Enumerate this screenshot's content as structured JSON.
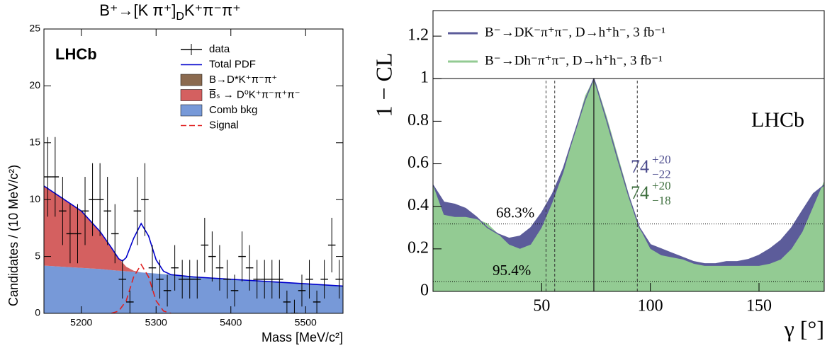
{
  "chart_data": [
    {
      "type": "errorbar",
      "title": {
        "main": "B⁺→[K π⁺]",
        "sub": "D",
        "tail": "K⁺π⁻π⁺"
      },
      "xlabel": "Mass [MeV/c²]",
      "ylabel": "Candidates / (10 MeV/c²)",
      "annotation": "LHCb",
      "xlim": [
        5150,
        5550
      ],
      "xticks": [
        5200,
        5300,
        5400,
        5500
      ],
      "ylim": [
        0,
        25
      ],
      "yticks": [
        0,
        5,
        10,
        15,
        20,
        25
      ],
      "data": {
        "name": "data",
        "color": "#000000",
        "x": [
          5155,
          5165,
          5175,
          5185,
          5195,
          5205,
          5215,
          5225,
          5235,
          5245,
          5255,
          5265,
          5275,
          5285,
          5295,
          5305,
          5315,
          5325,
          5335,
          5345,
          5355,
          5365,
          5375,
          5385,
          5395,
          5405,
          5415,
          5425,
          5435,
          5445,
          5455,
          5465,
          5475,
          5485,
          5495,
          5505,
          5515,
          5525,
          5535,
          5545
        ],
        "values": [
          12,
          12,
          9,
          7,
          7,
          9,
          10,
          10,
          9,
          7,
          3,
          1,
          9,
          10,
          4,
          3,
          2,
          4,
          3,
          3,
          3,
          6,
          5,
          4,
          3,
          2,
          5,
          4,
          3,
          3,
          3,
          3,
          1,
          0,
          2,
          3,
          1,
          3,
          6,
          3
        ],
        "errors": [
          3.5,
          3.5,
          3.0,
          2.6,
          2.6,
          3.0,
          3.2,
          3.2,
          3.0,
          2.6,
          1.7,
          1.0,
          3.0,
          3.2,
          2.0,
          1.7,
          1.4,
          2.0,
          1.7,
          1.7,
          1.7,
          2.4,
          2.2,
          2.0,
          1.7,
          1.4,
          2.2,
          2.0,
          1.7,
          1.7,
          1.7,
          1.7,
          1.0,
          1.2,
          1.4,
          1.7,
          1.0,
          1.7,
          2.4,
          1.7
        ]
      },
      "stack": {
        "x": [
          5150,
          5175,
          5200,
          5225,
          5240,
          5250,
          5260,
          5270,
          5280,
          5300,
          5350,
          5400,
          5450,
          5500,
          5550
        ],
        "series": [
          {
            "name": "Comb bkg",
            "color": "#7799d8",
            "values": [
              4.2,
              4.1,
              4.0,
              3.9,
              3.8,
              3.75,
              3.7,
              3.65,
              3.6,
              3.5,
              3.25,
              3.0,
              2.8,
              2.6,
              2.4
            ]
          },
          {
            "name": "B̅ₛ → D⁰K⁺π⁻π⁺π⁻",
            "color": "#d46060",
            "values": [
              7.0,
              6.0,
              5.0,
              3.3,
              2.0,
              1.1,
              0.4,
              0.1,
              0,
              0,
              0,
              0,
              0,
              0,
              0
            ]
          },
          {
            "name": "B→D*K⁺π⁻π⁺",
            "color": "#8b6a4f",
            "values": [
              0,
              0,
              0,
              0,
              0,
              0,
              0,
              0,
              0,
              0,
              0,
              0,
              0,
              0,
              0
            ]
          }
        ]
      },
      "curves": [
        {
          "name": "Total PDF",
          "color": "#0000cc",
          "style": "solid",
          "x": [
            5150,
            5175,
            5200,
            5225,
            5240,
            5250,
            5255,
            5260,
            5270,
            5280,
            5290,
            5300,
            5310,
            5320,
            5350,
            5400,
            5450,
            5500,
            5550
          ],
          "values": [
            11.2,
            10.1,
            9.0,
            7.2,
            5.8,
            4.8,
            4.6,
            4.9,
            6.6,
            7.9,
            6.8,
            4.7,
            3.7,
            3.4,
            3.2,
            3.0,
            2.8,
            2.6,
            2.4
          ]
        },
        {
          "name": "Signal",
          "color": "#e02020",
          "style": "dashed",
          "x": [
            5240,
            5250,
            5260,
            5270,
            5280,
            5290,
            5300,
            5310,
            5320
          ],
          "values": [
            0,
            0.2,
            1.1,
            3.2,
            4.3,
            3.2,
            1.1,
            0.2,
            0
          ]
        }
      ]
    },
    {
      "type": "area",
      "xlabel": "γ [°]",
      "ylabel": "1 − CL",
      "annotation": "LHCb",
      "xlim": [
        0,
        180
      ],
      "xticks": [
        50,
        100,
        150
      ],
      "ylim": [
        0,
        1.32
      ],
      "yticks": [
        0,
        0.2,
        0.4,
        0.6,
        0.8,
        1,
        1.2
      ],
      "x": [
        0,
        5,
        10,
        15,
        20,
        25,
        30,
        35,
        40,
        45,
        50,
        55,
        60,
        65,
        70,
        74,
        75,
        80,
        85,
        90,
        95,
        100,
        105,
        110,
        115,
        120,
        125,
        130,
        135,
        140,
        145,
        150,
        155,
        160,
        165,
        170,
        175,
        180
      ],
      "series": [
        {
          "name": "B⁻→DK⁻π⁺π⁻, D→h⁺h⁻,  3 fb⁻¹",
          "color": "#5c5c9a",
          "values": [
            0.5,
            0.42,
            0.41,
            0.39,
            0.35,
            0.3,
            0.27,
            0.25,
            0.26,
            0.3,
            0.37,
            0.46,
            0.58,
            0.74,
            0.9,
            1.0,
            0.97,
            0.8,
            0.62,
            0.45,
            0.3,
            0.22,
            0.2,
            0.18,
            0.16,
            0.14,
            0.13,
            0.13,
            0.14,
            0.14,
            0.15,
            0.17,
            0.2,
            0.24,
            0.3,
            0.38,
            0.46,
            0.5
          ]
        },
        {
          "name": "B⁻→Dh⁻π⁺π⁻, D→h⁺h⁻,  3 fb⁻¹",
          "color": "#93cb93",
          "values": [
            0.5,
            0.36,
            0.35,
            0.35,
            0.34,
            0.32,
            0.27,
            0.22,
            0.2,
            0.22,
            0.3,
            0.42,
            0.56,
            0.74,
            0.92,
            1.0,
            0.98,
            0.82,
            0.64,
            0.46,
            0.3,
            0.2,
            0.17,
            0.16,
            0.15,
            0.13,
            0.12,
            0.12,
            0.12,
            0.12,
            0.12,
            0.12,
            0.13,
            0.15,
            0.2,
            0.28,
            0.4,
            0.52
          ]
        }
      ],
      "hlines": [
        {
          "value": 0.317,
          "label": "68.3%"
        },
        {
          "value": 0.046,
          "label": "95.4%"
        }
      ],
      "vlines": [
        {
          "value": 74,
          "style": "solid"
        },
        {
          "value": 52,
          "style": "dashed"
        },
        {
          "value": 56,
          "style": "dashed"
        },
        {
          "value": 94,
          "style": "dashed"
        }
      ],
      "results": [
        {
          "central": "74",
          "plus": "+20",
          "minus": "−22",
          "color": "#4a4a8c"
        },
        {
          "central": "74",
          "plus": "+20",
          "minus": "−18",
          "color": "#3d6e3d"
        }
      ]
    }
  ]
}
